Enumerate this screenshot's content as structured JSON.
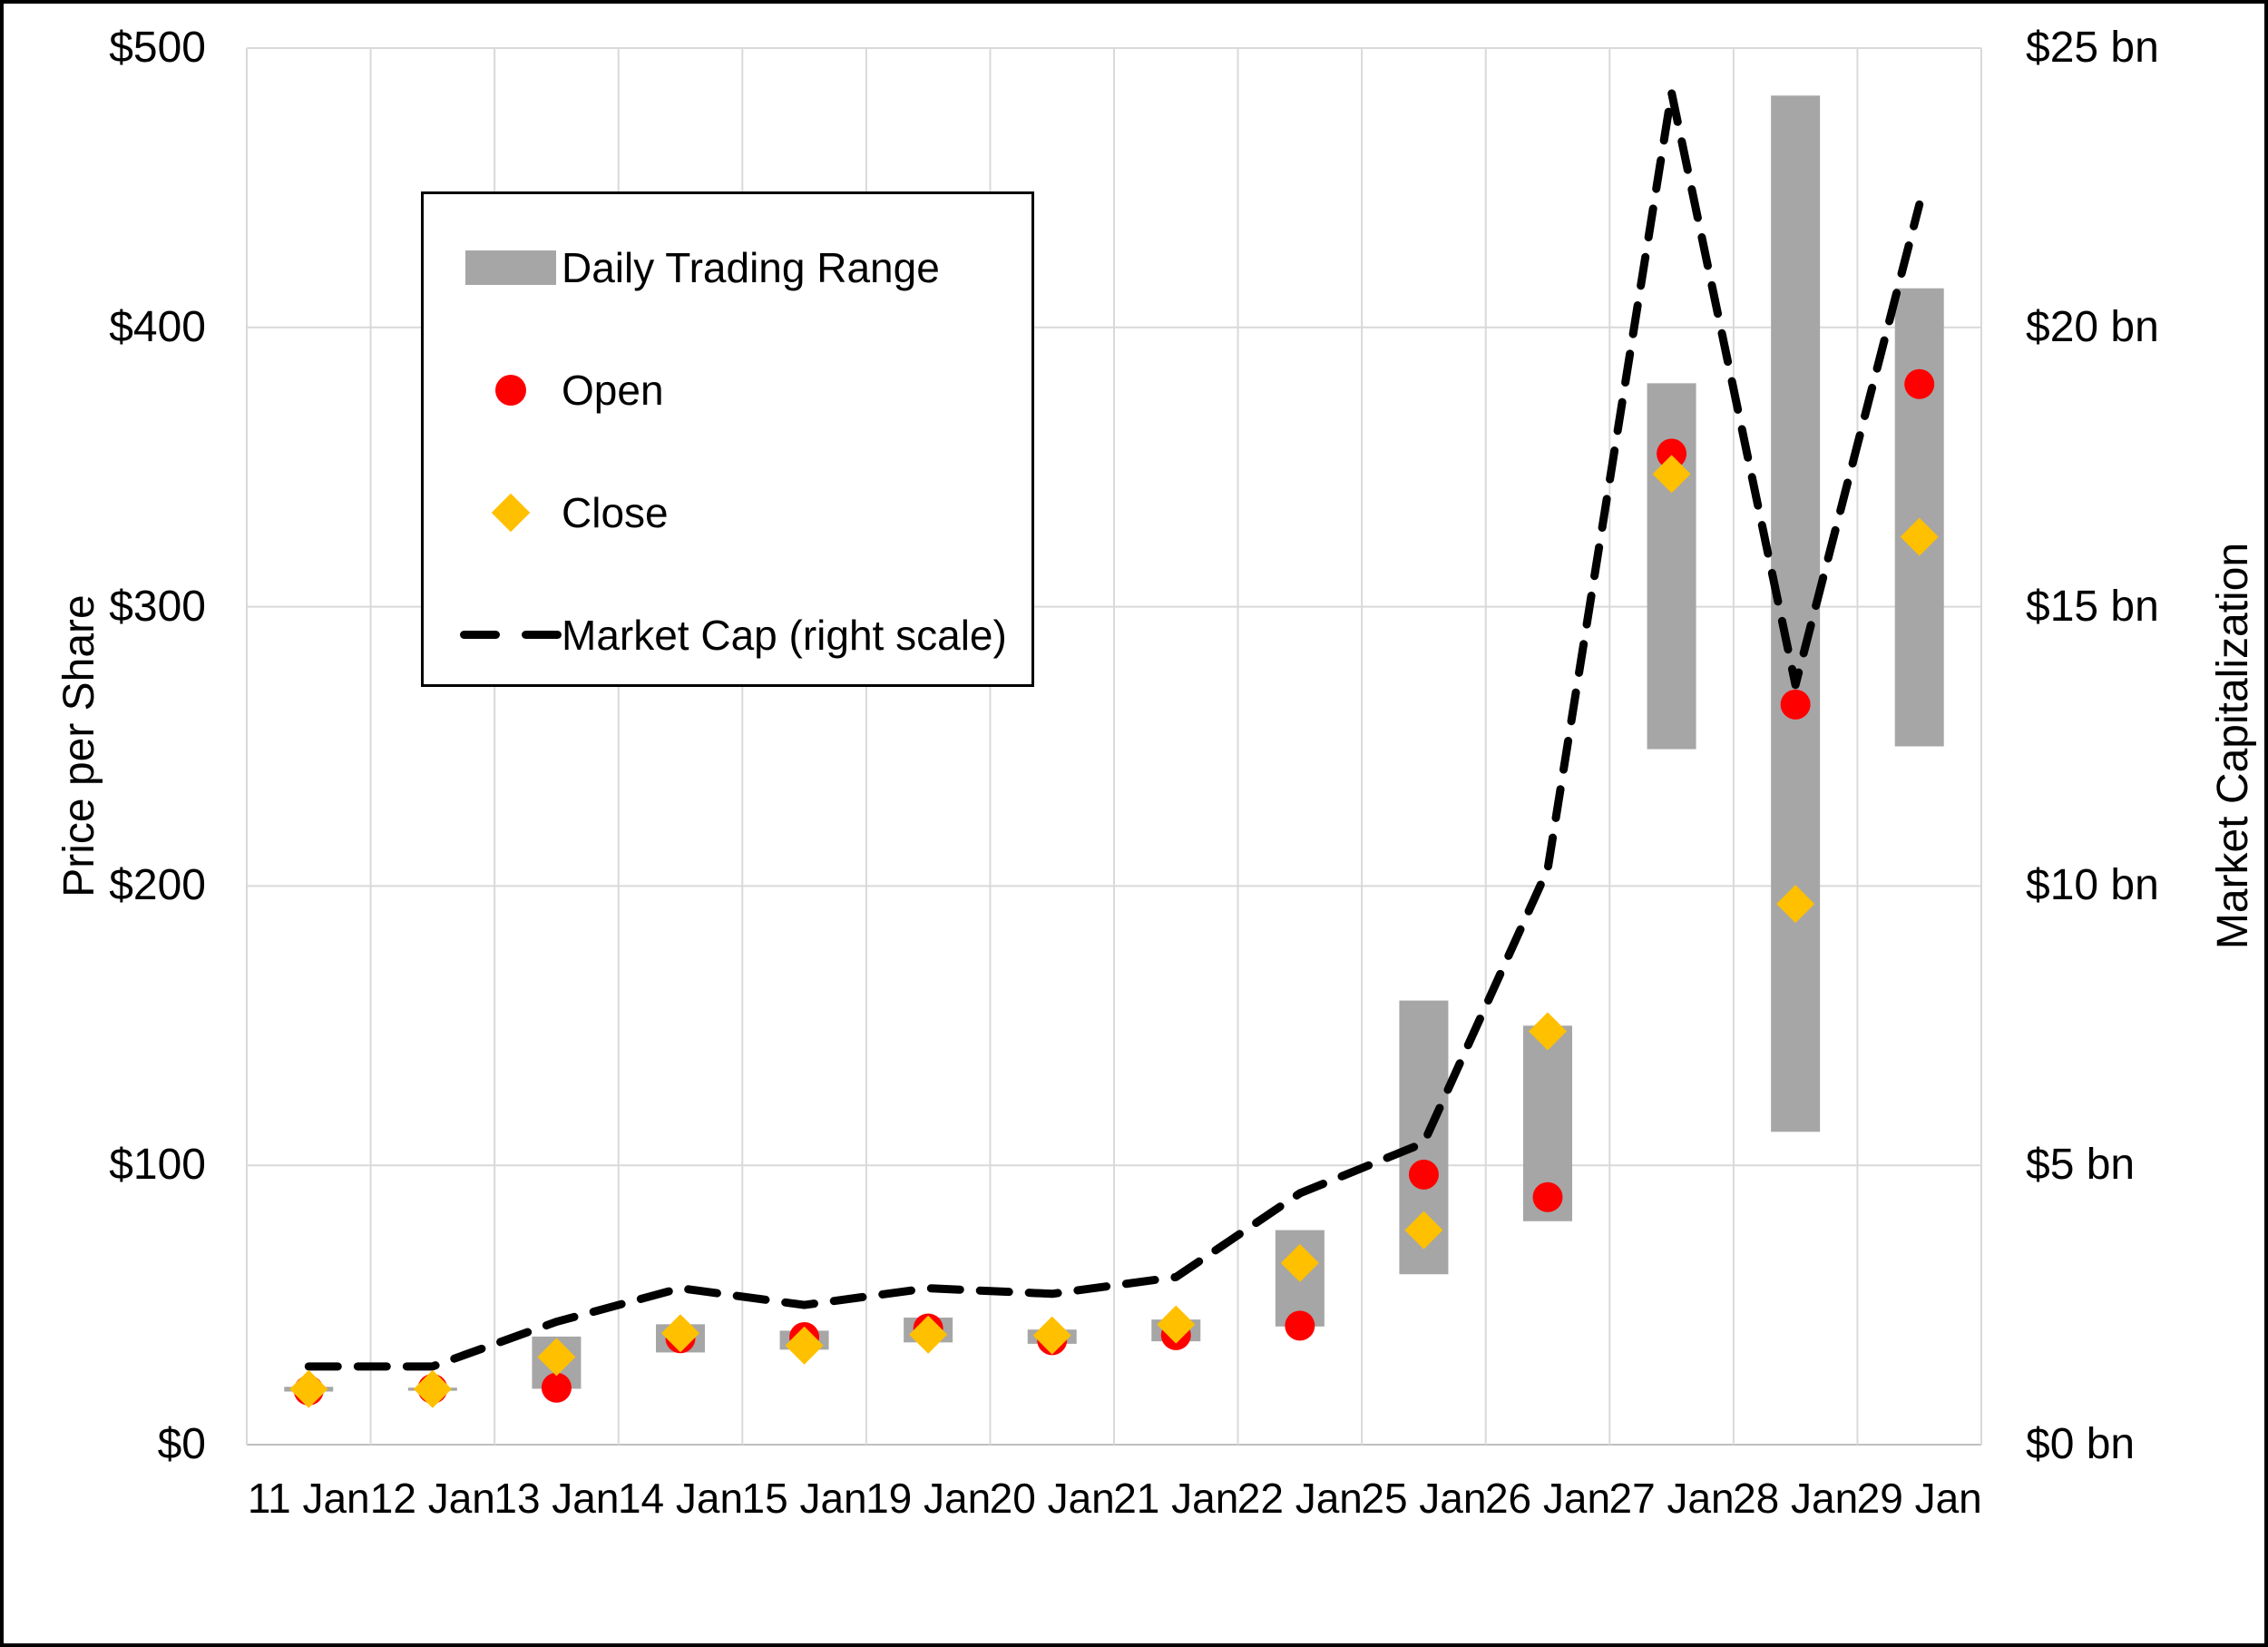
{
  "figure": {
    "left_axis_title": "Price per Share",
    "right_axis_title": "Market Capitalization"
  },
  "colors": {
    "bar": "#A6A6A6",
    "open": "#FF0000",
    "close": "#FFC000",
    "line": "#000000",
    "gridline": "#D9D9D9",
    "axis_line": "#BFBFBF",
    "text": "#000000",
    "border": "#000000",
    "background": "#FFFFFF"
  },
  "legend": {
    "items": [
      {
        "label": "Daily Trading Range",
        "marker": "bar-swatch",
        "color": "#A6A6A6"
      },
      {
        "label": "Open",
        "marker": "circle",
        "color": "#FF0000"
      },
      {
        "label": "Close",
        "marker": "diamond",
        "color": "#FFC000"
      },
      {
        "label": "Market Cap (right scale)",
        "marker": "dash",
        "color": "#000000"
      }
    ]
  },
  "chart_data": {
    "type": "combo (floating range bars + open/close scatter markers + dashed line on secondary axis)",
    "categories": [
      "11 Jan",
      "12 Jan",
      "13 Jan",
      "14 Jan",
      "15 Jan",
      "19 Jan",
      "20 Jan",
      "21 Jan",
      "22 Jan",
      "25 Jan",
      "26 Jan",
      "27 Jan",
      "28 Jan",
      "29 Jan"
    ],
    "series": [
      {
        "name": "Daily Trading Range",
        "type": "bar-range",
        "axis": "left",
        "low": [
          19,
          19.3,
          20,
          33,
          34,
          36.6,
          36.1,
          37,
          42.3,
          61,
          80,
          249,
          112,
          250
        ],
        "high": [
          20.7,
          20.4,
          38.7,
          43.1,
          40.8,
          45.5,
          41.2,
          44.8,
          76.8,
          159,
          150,
          380,
          483,
          414
        ],
        "color": "#A6A6A6"
      },
      {
        "name": "Open",
        "type": "scatter",
        "marker": "circle",
        "axis": "left",
        "values": [
          19.4,
          20,
          20.4,
          38.1,
          38.5,
          41.6,
          37.4,
          39.2,
          42.6,
          96.7,
          88.6,
          354.8,
          265,
          379.7
        ],
        "color": "#FF0000"
      },
      {
        "name": "Close",
        "type": "scatter",
        "marker": "diamond",
        "axis": "left",
        "values": [
          19.9,
          19.9,
          31.4,
          39.9,
          35.5,
          39.4,
          39.1,
          43,
          65,
          76.8,
          148,
          347.5,
          193.6,
          325
        ],
        "color": "#FFC000"
      },
      {
        "name": "Market Cap (right scale)",
        "type": "line",
        "style": "dashed",
        "axis": "right",
        "values_bn": [
          1.4,
          1.4,
          2.2,
          2.8,
          2.5,
          2.8,
          2.7,
          3.0,
          4.5,
          5.4,
          10.3,
          24.2,
          13.6,
          22.2
        ],
        "color": "#000000"
      }
    ],
    "left_axis": {
      "title": "Price per Share",
      "min": 0,
      "max": 500,
      "step": 100,
      "tick_labels": [
        "$0",
        "$100",
        "$200",
        "$300",
        "$400",
        "$500"
      ]
    },
    "right_axis": {
      "title": "Market Capitalization",
      "min": 0,
      "max": 25,
      "step": 5,
      "tick_labels": [
        "$0 bn",
        "$5 bn",
        "$10 bn",
        "$15 bn",
        "$20 bn",
        "$25 bn"
      ]
    },
    "grid": true,
    "legend_position": "top-left-inside"
  }
}
